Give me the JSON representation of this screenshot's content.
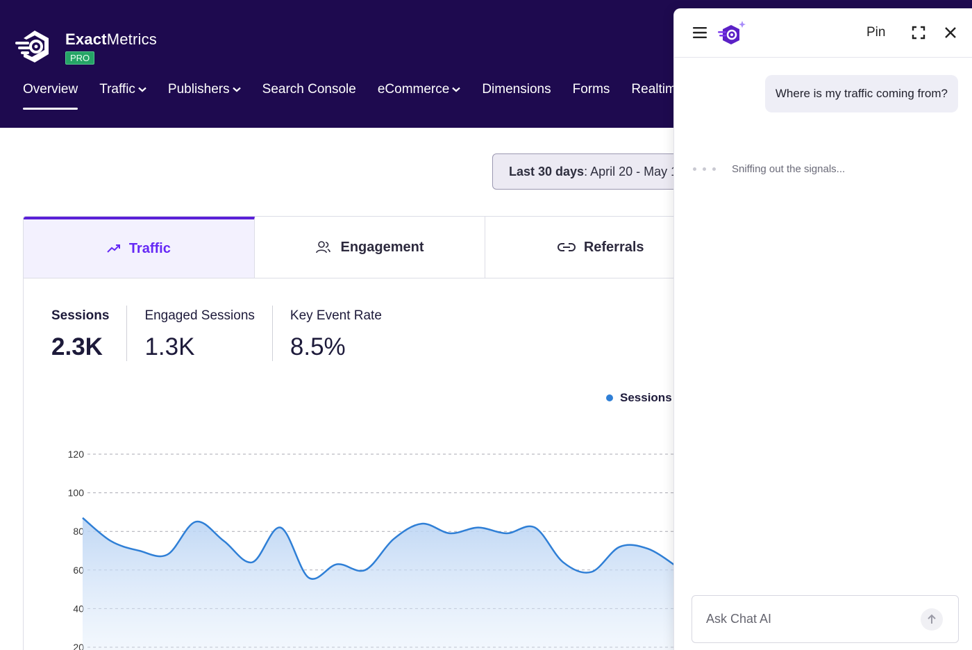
{
  "brand": {
    "name_bold": "Exact",
    "name_rest": "Metrics",
    "badge": "PRO"
  },
  "nav": {
    "items": [
      {
        "label": "Overview",
        "active": true,
        "dropdown": false
      },
      {
        "label": "Traffic",
        "active": false,
        "dropdown": true
      },
      {
        "label": "Publishers",
        "active": false,
        "dropdown": true
      },
      {
        "label": "Search Console",
        "active": false,
        "dropdown": false
      },
      {
        "label": "eCommerce",
        "active": false,
        "dropdown": true
      },
      {
        "label": "Dimensions",
        "active": false,
        "dropdown": false
      },
      {
        "label": "Forms",
        "active": false,
        "dropdown": false
      },
      {
        "label": "Realtime",
        "active": false,
        "dropdown": false
      }
    ]
  },
  "date_range": {
    "label": "Last 30 days",
    "value": ": April 20 - May 1"
  },
  "tabs": [
    {
      "label": "Traffic",
      "icon": "trending-up-icon",
      "active": true
    },
    {
      "label": "Engagement",
      "icon": "users-icon",
      "active": false
    },
    {
      "label": "Referrals",
      "icon": "link-icon",
      "active": false
    }
  ],
  "metrics": [
    {
      "label": "Sessions",
      "value": "2.3K"
    },
    {
      "label": "Engaged Sessions",
      "value": "1.3K"
    },
    {
      "label": "Key Event Rate",
      "value": "8.5%"
    }
  ],
  "chart_data": {
    "type": "area",
    "series": [
      {
        "name": "Sessions",
        "color": "#2f7fd6",
        "values": [
          87,
          75,
          70,
          68,
          85,
          75,
          64,
          82,
          56,
          63,
          60,
          76,
          84,
          79,
          82,
          79,
          82,
          64,
          59,
          72,
          71,
          62
        ]
      }
    ],
    "yticks": [
      "120",
      "100",
      "80",
      "60",
      "40",
      "20"
    ],
    "ylim": [
      20,
      120
    ],
    "grid": true,
    "legend": "top-right"
  },
  "chat": {
    "pin_label": "Pin",
    "user_message": "Where is my traffic coming from?",
    "status": "Sniffing out the signals...",
    "input_placeholder": "Ask Chat AI"
  }
}
